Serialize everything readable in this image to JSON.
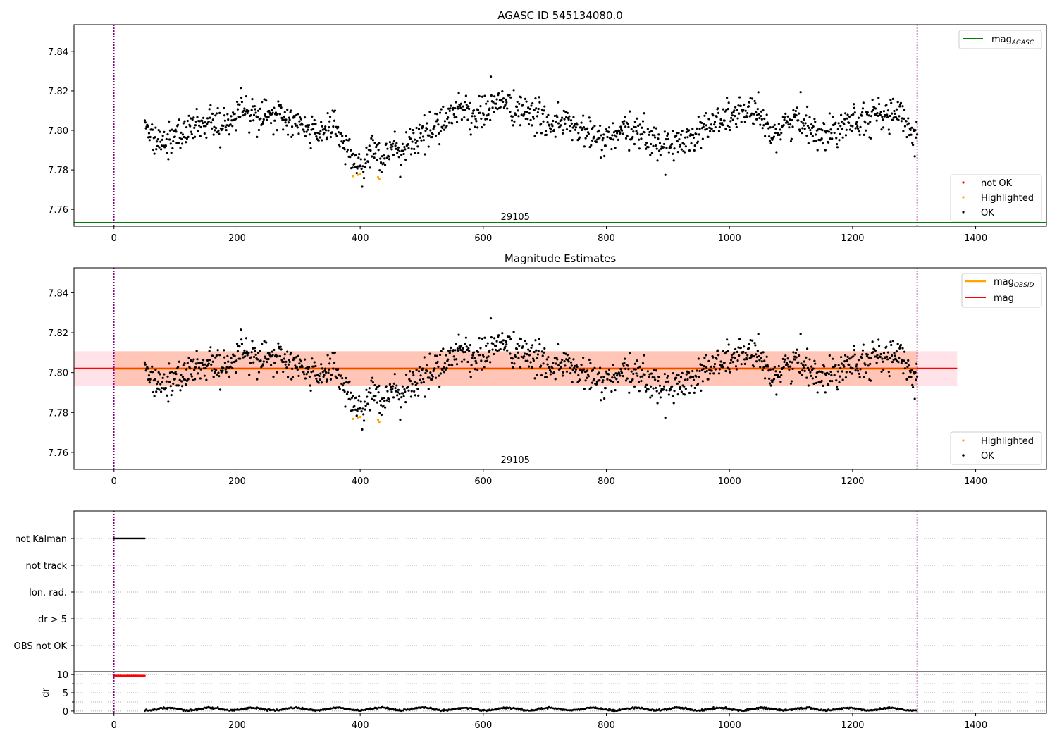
{
  "chart_data": [
    {
      "type": "scatter",
      "title": "AGASC ID 545134080.0",
      "xlim": [
        -65,
        1515
      ],
      "ylim": [
        7.7515,
        7.8535
      ],
      "x_ticks": [
        0,
        200,
        400,
        600,
        800,
        1000,
        1200,
        1400
      ],
      "y_ticks": [
        7.76,
        7.78,
        7.8,
        7.82,
        7.84
      ],
      "y_tick_labels": [
        "7.76",
        "7.78",
        "7.80",
        "7.82",
        "7.84"
      ],
      "grid": false,
      "obs_bounds": [
        0,
        1305
      ],
      "obsid_text": "29105",
      "obsid_text_x": 652,
      "reference_lines": [
        {
          "name": "mag_AGASC",
          "y": 7.7533,
          "color": "#008000"
        }
      ],
      "legend_top": {
        "position": "top-right",
        "entries": [
          {
            "label": "mag",
            "sub": "AGASC",
            "style": "line",
            "color": "#008000"
          }
        ]
      },
      "legend_bottom": {
        "position": "lower-right",
        "entries": [
          {
            "label": "not OK",
            "style": "dot",
            "color": "#ff0000"
          },
          {
            "label": "Highlighted",
            "style": "dot",
            "color": "#ffa500"
          },
          {
            "label": "OK",
            "style": "dot",
            "color": "#000000"
          }
        ]
      },
      "series": [
        {
          "name": "OK",
          "color": "#000000",
          "generated": true,
          "x_range": [
            50,
            1305
          ],
          "y_mean": 7.802,
          "points": 1280
        },
        {
          "name": "Highlighted",
          "color": "#ffa500",
          "x": [
            388,
            396,
            400,
            429,
            431
          ],
          "y": [
            7.7768,
            7.7775,
            7.7778,
            7.7763,
            7.7753
          ]
        },
        {
          "name": "not OK",
          "color": "#ff0000",
          "x": [],
          "y": []
        }
      ]
    },
    {
      "type": "scatter",
      "title": "Magnitude Estimates",
      "xlim": [
        -65,
        1515
      ],
      "ylim": [
        7.7515,
        7.8525
      ],
      "x_ticks": [
        0,
        200,
        400,
        600,
        800,
        1000,
        1200,
        1400
      ],
      "y_ticks": [
        7.76,
        7.78,
        7.8,
        7.82,
        7.84
      ],
      "y_tick_labels": [
        "7.76",
        "7.78",
        "7.80",
        "7.82",
        "7.84"
      ],
      "grid": false,
      "obs_bounds": [
        0,
        1305
      ],
      "obsid_text": "29105",
      "obsid_text_x": 652,
      "mag": {
        "y": 7.8021,
        "color": "#ff0000",
        "band": [
          7.7934,
          7.8107
        ],
        "band_color": "#ffc0cb",
        "x_range": [
          -65,
          1370
        ]
      },
      "mag_obsid": {
        "y": 7.8018,
        "color": "#ffa500",
        "band": [
          7.7934,
          7.8107
        ],
        "band_color": "#ffa07a",
        "x_range": [
          0,
          1305
        ]
      },
      "legend_top": {
        "position": "top-right",
        "entries": [
          {
            "label": "mag",
            "sub": "OBSID",
            "style": "line",
            "color": "#ffa500"
          },
          {
            "label": "mag",
            "sub": "",
            "style": "line",
            "color": "#ff0000"
          }
        ]
      },
      "legend_bottom": {
        "position": "lower-right",
        "entries": [
          {
            "label": "Highlighted",
            "style": "dot",
            "color": "#ffa500"
          },
          {
            "label": "OK",
            "style": "dot",
            "color": "#000000"
          }
        ]
      },
      "series": [
        {
          "name": "OK",
          "color": "#000000",
          "generated": true,
          "x_range": [
            50,
            1305
          ],
          "y_mean": 7.802,
          "points": 1280
        },
        {
          "name": "Highlighted",
          "color": "#ffa500",
          "x": [
            388,
            396,
            400,
            429,
            431
          ],
          "y": [
            7.7768,
            7.7775,
            7.7778,
            7.7763,
            7.7753
          ]
        }
      ]
    },
    {
      "type": "scatter",
      "title": "",
      "xlim": [
        -65,
        1515
      ],
      "flags": [
        "not Kalman",
        "not track",
        "Ion. rad.",
        "dr > 5",
        "OBS not OK"
      ],
      "flag_intervals": [
        {
          "flag": "not Kalman",
          "x_range": [
            0,
            50
          ],
          "color": "#000000"
        }
      ],
      "obs_bounds": [
        0,
        1305
      ],
      "grid": "horizontal-dotted"
    },
    {
      "type": "scatter",
      "title": "",
      "xlim": [
        -65,
        1515
      ],
      "ylim": [
        -0.6,
        10.8
      ],
      "ylabel": "dr",
      "x_ticks": [
        0,
        200,
        400,
        600,
        800,
        1000,
        1200,
        1400
      ],
      "y_ticks": [
        0,
        5,
        10
      ],
      "y_tick_labels": [
        "0",
        "5",
        "10"
      ],
      "obs_bounds": [
        0,
        1305
      ],
      "clipped": {
        "x_range": [
          0,
          50
        ],
        "y": 9.7,
        "color": "#ff0000"
      },
      "series": [
        {
          "name": "dr",
          "color": "#000000",
          "generated": true,
          "x_range": [
            50,
            1305
          ],
          "y_mean": 0.6
        }
      ]
    }
  ]
}
